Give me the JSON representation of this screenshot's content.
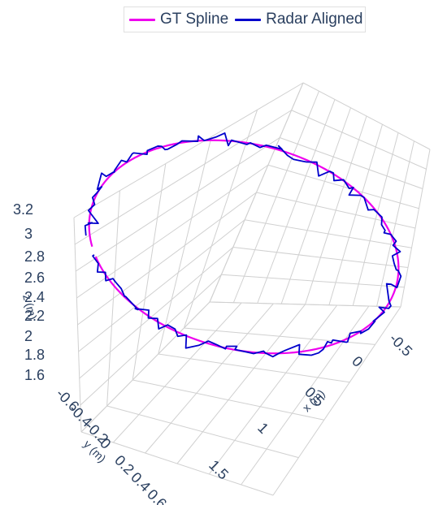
{
  "legend": {
    "items": [
      {
        "label": "GT Spline",
        "color": "#ee00ee"
      },
      {
        "label": "Radar Aligned",
        "color": "#0000cc"
      }
    ]
  },
  "chart_data": {
    "type": "line3d",
    "title": "",
    "axes": {
      "x": {
        "title": "x (m)",
        "ticks": [
          "-0.5",
          "0",
          "0.5",
          "1",
          "1.5"
        ]
      },
      "y": {
        "title": "y (m)",
        "ticks": [
          "-0.6",
          "-0.4",
          "-0.2",
          "0",
          "0.2",
          "0.4",
          "0.6"
        ]
      },
      "z": {
        "title": "z (m)",
        "ticks": [
          "1.6",
          "1.8",
          "2",
          "2.2",
          "2.4",
          "2.6",
          "2.8",
          "3",
          "3.2"
        ]
      }
    },
    "grid": true,
    "legend_position": "top-center",
    "series": [
      {
        "name": "GT Spline",
        "color": "#ee00ee",
        "note": "smooth closed-loop trajectory"
      },
      {
        "name": "Radar Aligned",
        "color": "#0000cc",
        "note": "noisy trajectory following the spline"
      }
    ]
  }
}
